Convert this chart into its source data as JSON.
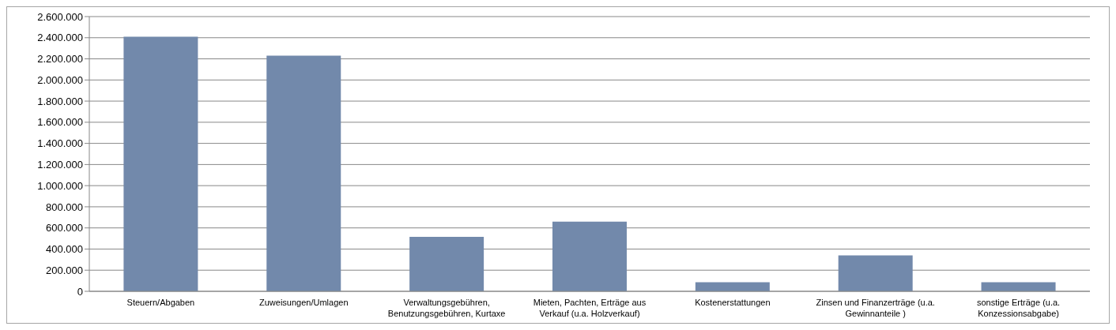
{
  "chart_data": {
    "type": "bar",
    "categories": [
      "Steuern/Abgaben",
      "Zuweisungen/Umlagen",
      "Verwaltungsgebühren, Benutzungsgebühren, Kurtaxe",
      "Mieten, Pachten, Erträge aus Verkauf (u.a. Holzverkauf)",
      "Kostenerstattungen",
      "Zinsen und Finanzerträge (u.a. Gewinnanteile )",
      "sonstige Erträge (u.a. Konzessionsabgabe)"
    ],
    "values": [
      2410000,
      2230000,
      515000,
      660000,
      85000,
      340000,
      85000
    ],
    "color": "#7289ab",
    "ylim": [
      0,
      2600000
    ],
    "yticks": [
      {
        "value": 0,
        "label": "0"
      },
      {
        "value": 200000,
        "label": "200.000"
      },
      {
        "value": 400000,
        "label": "400.000"
      },
      {
        "value": 600000,
        "label": "600.000"
      },
      {
        "value": 800000,
        "label": "800.000"
      },
      {
        "value": 1000000,
        "label": "1.000.000"
      },
      {
        "value": 1200000,
        "label": "1.200.000"
      },
      {
        "value": 1400000,
        "label": "1.400.000"
      },
      {
        "value": 1600000,
        "label": "1.600.000"
      },
      {
        "value": 1800000,
        "label": "1.800.000"
      },
      {
        "value": 2000000,
        "label": "2.000.000"
      },
      {
        "value": 2200000,
        "label": "2.200.000"
      },
      {
        "value": 2400000,
        "label": "2.400.000"
      },
      {
        "value": 2600000,
        "label": "2.600.000"
      }
    ],
    "grid": "y"
  }
}
